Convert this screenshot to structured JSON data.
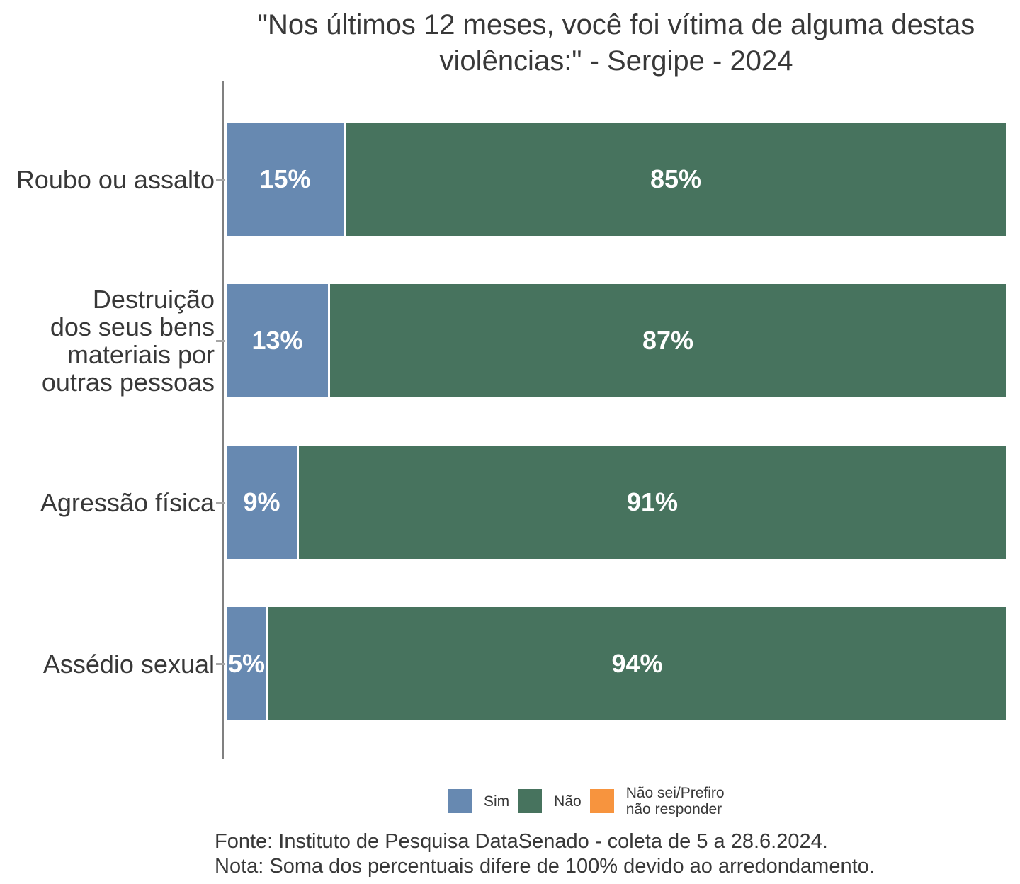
{
  "title": {
    "line1": "\"Nos últimos 12 meses, você foi vítima de alguma destas",
    "line2": "violências:\" - Sergipe - 2024"
  },
  "footer": {
    "fonte": "Fonte: Instituto de Pesquisa DataSenado - coleta de 5 a 28.6.2024.",
    "nota": "Nota: Soma dos percentuais difere de 100% devido ao arredondamento."
  },
  "colors": {
    "sim": "#6789b1",
    "nao": "#47735e",
    "nao_sei": "#f7943e",
    "text": "#383838",
    "axis_line": "#808080",
    "tick": "#a6a6a6",
    "value_label_text": "#ffffff"
  },
  "legend": {
    "items": [
      {
        "label": "Sim",
        "color": "#6789b1"
      },
      {
        "label": "Não",
        "color": "#47735e"
      },
      {
        "label": "Não sei/Prefiro\nnão responder",
        "color": "#f7943e"
      }
    ]
  },
  "chart_data": {
    "type": "bar",
    "orientation": "horizontal",
    "stacked": true,
    "normalized_full_width": true,
    "title": "\"Nos últimos 12 meses, você foi vítima de alguma destas violências:\" - Sergipe - 2024",
    "categories": [
      "Roubo ou assalto",
      "Destruição\ndos seus bens\nmateriais por\noutras pessoas",
      "Agressão física",
      "Assédio sexual"
    ],
    "series": [
      {
        "name": "Sim",
        "color": "#6789b1",
        "values": [
          15,
          13,
          9,
          5
        ]
      },
      {
        "name": "Não",
        "color": "#47735e",
        "values": [
          85,
          87,
          91,
          94
        ]
      },
      {
        "name": "Não sei/Prefiro não responder",
        "color": "#f7943e",
        "values_shown_on_chart": false
      }
    ],
    "value_label_suffix": "%",
    "legend_position": "bottom",
    "grid": false
  }
}
